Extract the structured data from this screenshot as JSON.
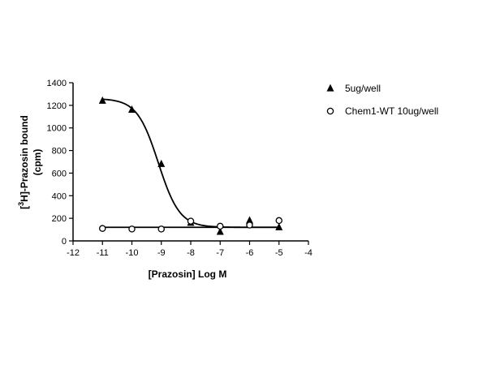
{
  "chart_data": {
    "type": "scatter",
    "xlabel": "[Prazosin] Log M",
    "ylabel_parts": [
      "[",
      "3",
      "H]-Prazosin bound"
    ],
    "ylabel_line2": "(cpm)",
    "xlim": [
      -12,
      -4
    ],
    "ylim": [
      0,
      1400
    ],
    "xticks": [
      -12,
      -11,
      -10,
      -9,
      -8,
      -7,
      -6,
      -5,
      -4
    ],
    "yticks": [
      0,
      200,
      400,
      600,
      800,
      1000,
      1200,
      1400
    ],
    "xtick_labels": [
      "-12",
      "-11",
      "-10",
      "-9",
      "-8",
      "-7",
      "-6",
      "-5",
      "-4"
    ],
    "ytick_labels": [
      "0",
      "200",
      "400",
      "600",
      "800",
      "1000",
      "1200",
      "1400"
    ],
    "grid": false,
    "legend_position": "top-right outside",
    "series": [
      {
        "name": "5ug/well",
        "marker": "filled-triangle",
        "points": [
          {
            "x": -11,
            "y": 1240
          },
          {
            "x": -10,
            "y": 1160
          },
          {
            "x": -9,
            "y": 680
          },
          {
            "x": -8,
            "y": 160
          },
          {
            "x": -7,
            "y": 80
          },
          {
            "x": -6,
            "y": 180
          },
          {
            "x": -5,
            "y": 120
          }
        ],
        "fit": {
          "model": "sigmoidal dose-response",
          "top": 1260,
          "bottom": 120,
          "log_ec50": -9.1,
          "hill_slope": -1.2
        }
      },
      {
        "name": "Chem1-WT 10ug/well",
        "marker": "open-circle",
        "points": [
          {
            "x": -11,
            "y": 110
          },
          {
            "x": -10,
            "y": 105
          },
          {
            "x": -9,
            "y": 105
          },
          {
            "x": -8,
            "y": 175
          },
          {
            "x": -7,
            "y": 130
          },
          {
            "x": -6,
            "y": 140
          },
          {
            "x": -5,
            "y": 180
          }
        ],
        "fit": {
          "model": "horizontal line",
          "y": 120
        }
      }
    ]
  }
}
